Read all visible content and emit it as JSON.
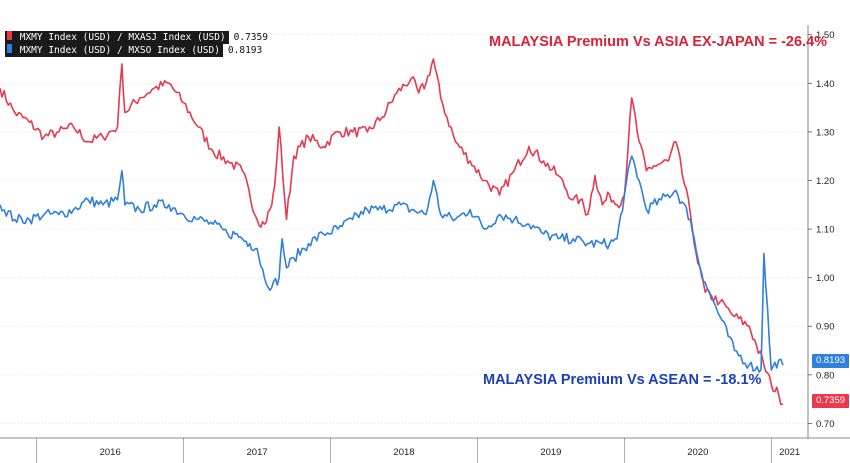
{
  "legend": [
    {
      "label": "MXMY Index (USD) / MXASJ Index (USD)",
      "value": "0.7359",
      "color": "#e8394f"
    },
    {
      "label": "MXMY Index (USD) / MXSO Index (USD)",
      "value": "0.8193",
      "color": "#2f7fdc"
    }
  ],
  "annotations": {
    "red": "MALAYSIA Premium Vs ASIA EX-JAPAN = -26.4%",
    "blue": "MALAYSIA Premium Vs ASEAN = -18.1%"
  },
  "colors": {
    "red": "#e8394f",
    "blue": "#2f7fdc",
    "red_text": "#d8223a",
    "blue_text": "#1a3fbf"
  },
  "chart_data": {
    "type": "line",
    "x_tick_labels": [
      "2016",
      "2017",
      "2018",
      "2019",
      "2020",
      "2021"
    ],
    "y_ticks": [
      "0.70",
      "0.80",
      "0.90",
      "1.00",
      "1.10",
      "1.20",
      "1.30",
      "1.40",
      "1.50"
    ],
    "ylim": [
      0.67,
      1.52
    ],
    "xlim": [
      2015.75,
      2021.25
    ],
    "last_value_tags": [
      "0.8193",
      "0.7359"
    ],
    "series": [
      {
        "name": "MXMY Index (USD) / MXASJ Index (USD)",
        "color": "#e8394f",
        "x": [
          2015.75,
          2015.85,
          2015.95,
          2016.05,
          2016.15,
          2016.25,
          2016.35,
          2016.45,
          2016.55,
          2016.58,
          2016.6,
          2016.7,
          2016.8,
          2016.9,
          2017.0,
          2017.1,
          2017.2,
          2017.3,
          2017.4,
          2017.5,
          2017.55,
          2017.6,
          2017.62,
          2017.65,
          2017.7,
          2017.75,
          2017.85,
          2017.95,
          2018.05,
          2018.15,
          2018.25,
          2018.35,
          2018.45,
          2018.55,
          2018.6,
          2018.65,
          2018.7,
          2018.75,
          2018.85,
          2018.95,
          2019.05,
          2019.15,
          2019.25,
          2019.35,
          2019.45,
          2019.55,
          2019.65,
          2019.7,
          2019.75,
          2019.8,
          2019.85,
          2019.9,
          2019.95,
          2020.0,
          2020.05,
          2020.1,
          2020.15,
          2020.2,
          2020.3,
          2020.35,
          2020.45,
          2020.5,
          2020.55,
          2020.65,
          2020.75,
          2020.85,
          2020.9,
          2020.95,
          2021.0,
          2021.05,
          2021.08
        ],
        "values": [
          1.39,
          1.34,
          1.32,
          1.29,
          1.3,
          1.31,
          1.28,
          1.29,
          1.31,
          1.44,
          1.34,
          1.37,
          1.39,
          1.4,
          1.36,
          1.31,
          1.26,
          1.24,
          1.22,
          1.12,
          1.11,
          1.15,
          1.19,
          1.31,
          1.12,
          1.25,
          1.29,
          1.27,
          1.3,
          1.3,
          1.3,
          1.33,
          1.38,
          1.41,
          1.38,
          1.4,
          1.45,
          1.37,
          1.28,
          1.24,
          1.2,
          1.17,
          1.22,
          1.27,
          1.24,
          1.21,
          1.16,
          1.16,
          1.13,
          1.21,
          1.15,
          1.17,
          1.15,
          1.17,
          1.37,
          1.28,
          1.22,
          1.23,
          1.24,
          1.28,
          1.13,
          1.03,
          0.97,
          0.95,
          0.92,
          0.9,
          0.86,
          0.82,
          0.78,
          0.76,
          0.74
        ]
      },
      {
        "name": "MXMY Index (USD) / MXSO Index (USD)",
        "color": "#2f7fdc",
        "x": [
          2015.75,
          2015.85,
          2015.95,
          2016.05,
          2016.15,
          2016.25,
          2016.35,
          2016.45,
          2016.55,
          2016.58,
          2016.6,
          2016.7,
          2016.8,
          2016.9,
          2017.0,
          2017.1,
          2017.2,
          2017.3,
          2017.35,
          2017.4,
          2017.45,
          2017.5,
          2017.55,
          2017.6,
          2017.65,
          2017.67,
          2017.7,
          2017.75,
          2017.85,
          2017.95,
          2018.05,
          2018.15,
          2018.25,
          2018.35,
          2018.45,
          2018.55,
          2018.65,
          2018.7,
          2018.75,
          2018.85,
          2018.95,
          2019.05,
          2019.15,
          2019.25,
          2019.35,
          2019.45,
          2019.55,
          2019.65,
          2019.75,
          2019.85,
          2019.9,
          2019.95,
          2020.0,
          2020.05,
          2020.1,
          2020.15,
          2020.25,
          2020.35,
          2020.45,
          2020.5,
          2020.55,
          2020.65,
          2020.75,
          2020.85,
          2020.93,
          2020.95,
          2021.0,
          2021.05,
          2021.08
        ],
        "values": [
          1.15,
          1.12,
          1.12,
          1.13,
          1.13,
          1.14,
          1.16,
          1.15,
          1.16,
          1.22,
          1.15,
          1.14,
          1.15,
          1.15,
          1.13,
          1.12,
          1.11,
          1.09,
          1.09,
          1.08,
          1.07,
          1.06,
          1.0,
          0.98,
          1.0,
          1.08,
          1.02,
          1.04,
          1.07,
          1.09,
          1.1,
          1.12,
          1.14,
          1.14,
          1.15,
          1.14,
          1.13,
          1.2,
          1.13,
          1.12,
          1.14,
          1.1,
          1.13,
          1.12,
          1.11,
          1.09,
          1.08,
          1.08,
          1.07,
          1.07,
          1.07,
          1.08,
          1.17,
          1.25,
          1.2,
          1.14,
          1.16,
          1.18,
          1.12,
          1.04,
          0.99,
          0.92,
          0.85,
          0.82,
          0.81,
          1.05,
          0.81,
          0.83,
          0.82
        ]
      }
    ]
  }
}
